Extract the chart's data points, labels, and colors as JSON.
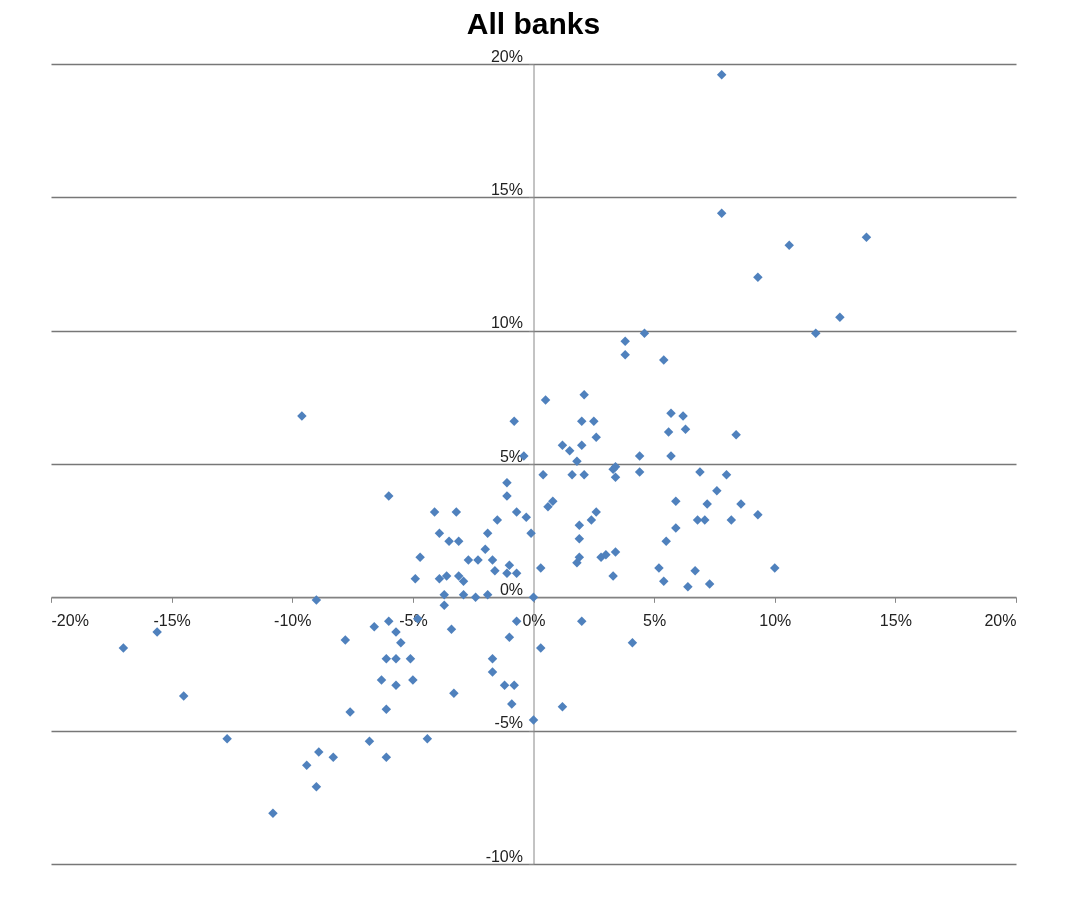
{
  "chart_data": {
    "type": "scatter",
    "title": "All banks",
    "marker": "diamond",
    "grid": "y",
    "xlim": [
      -20,
      20
    ],
    "ylim": [
      -10,
      20
    ],
    "xticks": [
      {
        "value": -20,
        "label": "-20%"
      },
      {
        "value": -15,
        "label": "-15%"
      },
      {
        "value": -10,
        "label": "-10%"
      },
      {
        "value": -5,
        "label": "-5%"
      },
      {
        "value": 0,
        "label": "0%"
      },
      {
        "value": 5,
        "label": "5%"
      },
      {
        "value": 10,
        "label": "10%"
      },
      {
        "value": 15,
        "label": "15%"
      },
      {
        "value": 20,
        "label": "20%"
      }
    ],
    "yticks": [
      {
        "value": -10,
        "label": "-10%"
      },
      {
        "value": -5,
        "label": "-5%"
      },
      {
        "value": 0,
        "label": "0%"
      },
      {
        "value": 5,
        "label": "5%"
      },
      {
        "value": 10,
        "label": "10%"
      },
      {
        "value": 15,
        "label": "15%"
      },
      {
        "value": 20,
        "label": "20%"
      }
    ],
    "x": [
      7.8,
      7.8,
      13.8,
      10.6,
      9.3,
      12.7,
      11.7,
      3.8,
      3.8,
      4.6,
      5.4,
      0.5,
      2.1,
      -0.8,
      -9.6,
      2.0,
      2.5,
      2.6,
      1.2,
      1.5,
      2.0,
      1.8,
      1.6,
      2.1,
      -0.4,
      0.4,
      5.7,
      6.2,
      6.3,
      5.6,
      8.4,
      5.7,
      4.4,
      4.4,
      3.3,
      3.4,
      3.4,
      6.9,
      8.0,
      -1.1,
      -6.0,
      -1.1,
      0.6,
      0.8,
      -0.7,
      -0.3,
      -1.5,
      -4.1,
      -3.2,
      -3.9,
      -3.5,
      -3.1,
      -1.9,
      -2.0,
      -2.7,
      -2.3,
      -1.7,
      -1.6,
      -1.1,
      -0.7,
      -1.0,
      -4.7,
      -4.9,
      -3.9,
      -3.6,
      -3.1,
      -2.9,
      -3.7,
      -3.7,
      -2.9,
      -2.4,
      -1.9,
      0.3,
      1.8,
      1.9,
      2.8,
      3.0,
      3.3,
      3.4,
      0,
      -0.1,
      1.9,
      1.9,
      2.4,
      2.6,
      7.6,
      5.9,
      7.2,
      8.6,
      9.3,
      6.8,
      7.1,
      8.2,
      5.9,
      5.5,
      5.2,
      5.4,
      6.7,
      6.4,
      7.3,
      10.0,
      -17.0,
      -15.6,
      -14.5,
      -12.7,
      -10.8,
      -9.4,
      -9.0,
      -8.9,
      -8.3,
      -7.8,
      -7.6,
      -9.0,
      -6.8,
      -6.1,
      -6.6,
      -6.0,
      -4.8,
      -3.4,
      -5.7,
      -5.5,
      -6.1,
      -5.7,
      -5.1,
      -6.3,
      -5.7,
      -5.0,
      -3.3,
      -6.1,
      -4.4,
      -0.7,
      -1.0,
      0.3,
      -1.7,
      -1.7,
      -1.2,
      -0.8,
      -0.9,
      0,
      1.2,
      2.0,
      4.1
    ],
    "values": [
      19.6,
      14.4,
      13.5,
      13.2,
      12.0,
      10.5,
      9.9,
      9.6,
      9.1,
      9.9,
      8.9,
      7.4,
      7.6,
      6.6,
      6.8,
      6.6,
      6.6,
      6.0,
      5.7,
      5.5,
      5.7,
      5.1,
      4.6,
      4.6,
      5.3,
      4.6,
      6.9,
      6.8,
      6.3,
      6.2,
      6.1,
      5.3,
      5.3,
      4.7,
      4.8,
      4.5,
      4.9,
      4.7,
      4.6,
      4.3,
      3.8,
      3.8,
      3.4,
      3.6,
      3.2,
      3.0,
      2.9,
      3.2,
      3.2,
      2.4,
      2.1,
      2.1,
      2.4,
      1.8,
      1.4,
      1.4,
      1.4,
      1.0,
      0.9,
      0.9,
      1.2,
      1.5,
      0.7,
      0.7,
      0.8,
      0.8,
      0.6,
      0.1,
      -0.3,
      0.1,
      0.0,
      0.1,
      1.1,
      1.3,
      1.5,
      1.5,
      1.6,
      0.8,
      1.7,
      0,
      2.4,
      2.7,
      2.2,
      2.9,
      3.2,
      4.0,
      3.6,
      3.5,
      3.5,
      3.1,
      2.9,
      2.9,
      2.9,
      2.6,
      2.1,
      1.1,
      0.6,
      1.0,
      0.4,
      0.5,
      1.1,
      -1.9,
      -1.3,
      -3.7,
      -5.3,
      -8.1,
      -6.3,
      -7.1,
      -5.8,
      -6.0,
      -1.6,
      -4.3,
      -0.1,
      -5.4,
      -6.0,
      -1.1,
      -0.9,
      -0.8,
      -1.2,
      -1.3,
      -1.7,
      -2.3,
      -2.3,
      -2.3,
      -3.1,
      -3.3,
      -3.1,
      -3.6,
      -4.2,
      -5.3,
      -0.9,
      -1.5,
      -1.9,
      -2.3,
      -2.8,
      -3.3,
      -3.3,
      -4.0,
      -4.6,
      -4.1,
      -0.9,
      -1.7
    ],
    "color": "#4f81bd"
  }
}
